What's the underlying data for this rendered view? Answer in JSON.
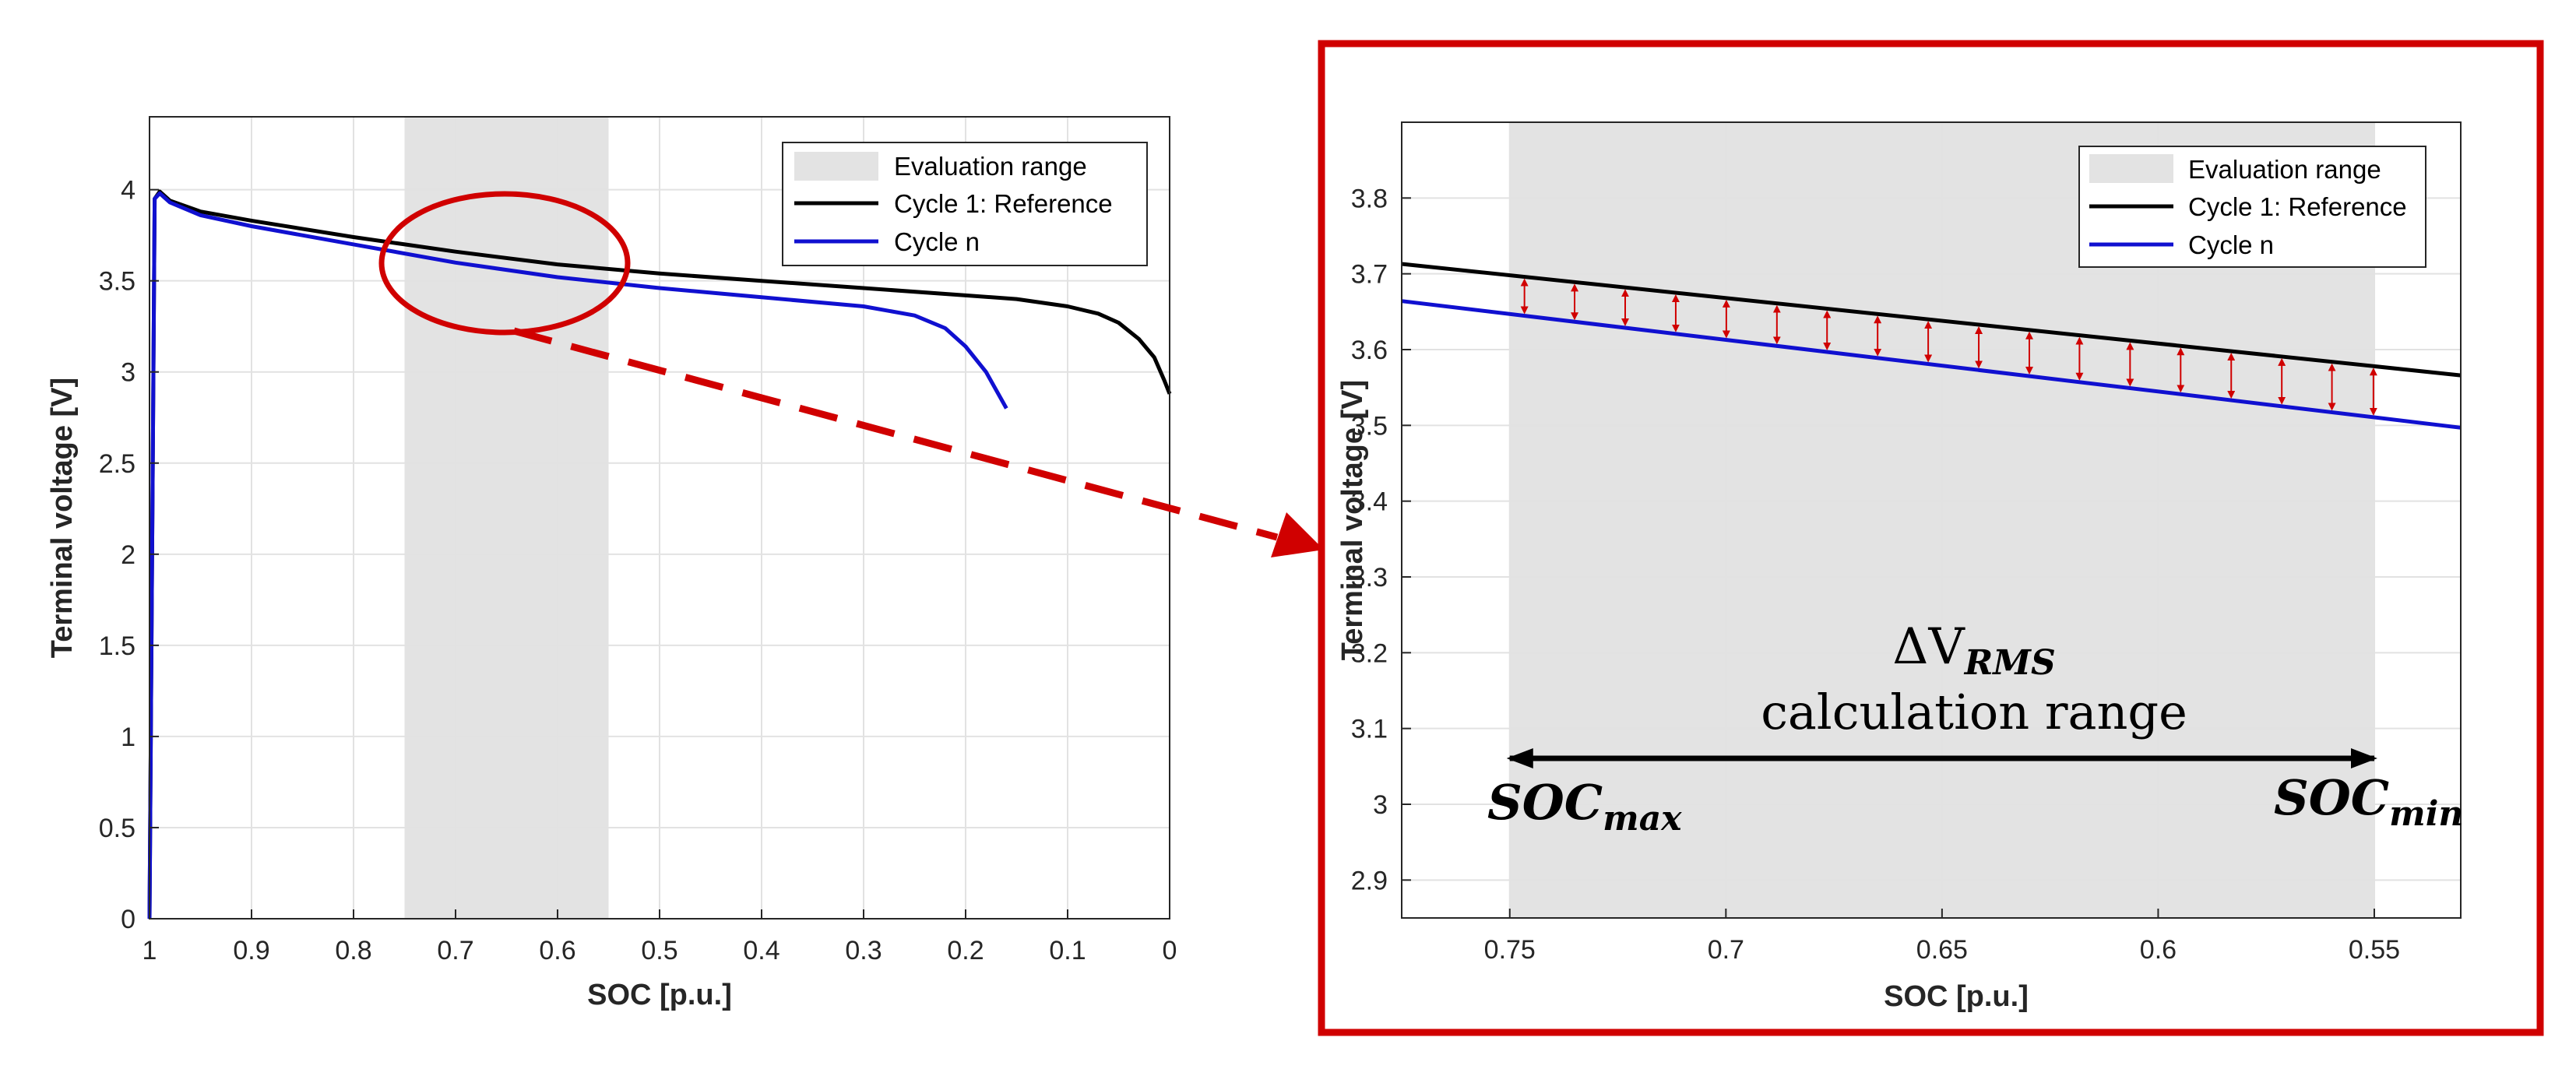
{
  "colors": {
    "reference": "#000000",
    "cycle_n": "#1010d0",
    "range_fill": "#e3e3e3",
    "highlight": "#d00000",
    "grid": "#e2e2e2",
    "axis": "#262626"
  },
  "chart_data": [
    {
      "type": "line",
      "title": "",
      "xlabel": "SOC [p.u.]",
      "ylabel": "Terminal voltage [V]",
      "xlim": [
        1,
        0
      ],
      "ylim": [
        0,
        4.4
      ],
      "xticks": [
        1,
        0.9,
        0.8,
        0.7,
        0.6,
        0.5,
        0.4,
        0.3,
        0.2,
        0.1,
        0
      ],
      "xtick_labels": [
        "1",
        "0.9",
        "0.8",
        "0.7",
        "0.6",
        "0.5",
        "0.4",
        "0.3",
        "0.2",
        "0.1",
        "0"
      ],
      "yticks": [
        0,
        0.5,
        1,
        1.5,
        2,
        2.5,
        3,
        3.5,
        4
      ],
      "ytick_labels": [
        "0",
        "0.5",
        "1",
        "1.5",
        "2",
        "2.5",
        "3",
        "3.5",
        "4"
      ],
      "grid": true,
      "evaluation_range": [
        0.75,
        0.55
      ],
      "legend": {
        "position": "top-right",
        "entries": [
          "Evaluation range",
          "Cycle 1: Reference",
          "Cycle n"
        ]
      },
      "series": [
        {
          "name": "Cycle 1: Reference",
          "x": [
            1.0,
            0.995,
            0.99,
            0.98,
            0.95,
            0.9,
            0.8,
            0.7,
            0.6,
            0.5,
            0.4,
            0.3,
            0.2,
            0.15,
            0.1,
            0.07,
            0.05,
            0.03,
            0.015,
            0.005,
            0.0
          ],
          "y": [
            0.0,
            3.95,
            3.99,
            3.94,
            3.88,
            3.83,
            3.74,
            3.66,
            3.59,
            3.54,
            3.5,
            3.46,
            3.42,
            3.4,
            3.36,
            3.32,
            3.27,
            3.18,
            3.08,
            2.95,
            2.88
          ]
        },
        {
          "name": "Cycle n",
          "x": [
            1.0,
            0.995,
            0.99,
            0.98,
            0.95,
            0.9,
            0.8,
            0.7,
            0.6,
            0.5,
            0.4,
            0.3,
            0.25,
            0.22,
            0.2,
            0.18,
            0.16
          ],
          "y": [
            0.0,
            3.95,
            3.98,
            3.93,
            3.86,
            3.8,
            3.7,
            3.6,
            3.52,
            3.46,
            3.41,
            3.36,
            3.31,
            3.24,
            3.14,
            3.0,
            2.8
          ]
        }
      ],
      "annotations": [
        "Zoomed region highlighted by red ellipse around SOC 0.6–0.75, V 3.5–3.7"
      ]
    },
    {
      "type": "line",
      "title": "",
      "xlabel": "SOC [p.u.]",
      "ylabel": "Terminal voltage [V]",
      "xlim": [
        0.775,
        0.53
      ],
      "ylim": [
        2.85,
        3.9
      ],
      "xticks": [
        0.75,
        0.7,
        0.65,
        0.6,
        0.55
      ],
      "xtick_labels": [
        "0.75",
        "0.7",
        "0.65",
        "0.6",
        "0.55"
      ],
      "yticks": [
        2.9,
        3.0,
        3.1,
        3.2,
        3.3,
        3.4,
        3.5,
        3.6,
        3.7,
        3.8
      ],
      "ytick_labels": [
        "2.9",
        "3",
        "3.1",
        "3.2",
        "3.3",
        "3.4",
        "3.5",
        "3.6",
        "3.7",
        "3.8"
      ],
      "grid": true,
      "evaluation_range": [
        0.75,
        0.55
      ],
      "legend": {
        "position": "top-right",
        "entries": [
          "Evaluation range",
          "Cycle 1: Reference",
          "Cycle n"
        ]
      },
      "series": [
        {
          "name": "Cycle 1: Reference",
          "x": [
            0.775,
            0.53
          ],
          "y": [
            3.713,
            3.566
          ]
        },
        {
          "name": "Cycle n",
          "x": [
            0.775,
            0.53
          ],
          "y": [
            3.664,
            3.497
          ]
        }
      ],
      "difference_arrows_soc": [
        0.7466,
        0.735,
        0.7233,
        0.7116,
        0.6999,
        0.6882,
        0.6766,
        0.6649,
        0.6532,
        0.6415,
        0.6298,
        0.6182,
        0.6065,
        0.5948,
        0.5831,
        0.5714,
        0.5598,
        0.5502
      ],
      "calc_range": [
        0.75,
        0.55
      ],
      "annotations": {
        "delta": "ΔV",
        "delta_sub": "RMS",
        "range_text": "calculation range",
        "soc_max_main": "SOC",
        "soc_max_sub": "max",
        "soc_min_main": "SOC",
        "soc_min_sub": "min"
      }
    }
  ]
}
